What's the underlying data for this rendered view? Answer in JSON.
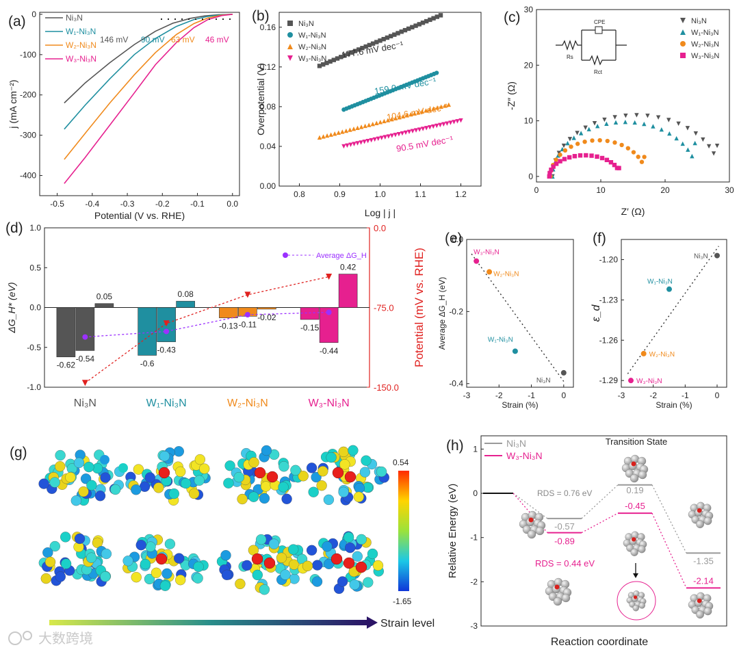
{
  "colors": {
    "ni3n": "#555555",
    "w1": "#1f8fa0",
    "w2": "#f08a1c",
    "w3": "#e6208f",
    "red": "#e0211f",
    "purple": "#9b30ff"
  },
  "chart_data": [
    {
      "panel": "(a)",
      "type": "line",
      "xlabel": "Potential (V vs. RHE)",
      "ylabel": "j (mA cm⁻²)",
      "xlim": [
        -0.55,
        0.02
      ],
      "ylim": [
        -450,
        5
      ],
      "xticks": [
        "-0.5",
        "-0.4",
        "-0.3",
        "-0.2",
        "-0.1",
        "0.0"
      ],
      "yticks": [
        "0",
        "-100",
        "-200",
        "-300",
        "-400"
      ],
      "legend": [
        "Ni₃N",
        "W₁-Ni₃N",
        "W₂-Ni₃N",
        "W₃-Ni₃N"
      ],
      "annotations": [
        "146 mV",
        "90 mV",
        "63 mV",
        "46 mV"
      ],
      "series": [
        {
          "name": "Ni₃N",
          "x": [
            -0.48,
            -0.42,
            -0.35,
            -0.28,
            -0.22,
            -0.17,
            -0.12,
            -0.08,
            -0.04,
            0.0
          ],
          "y": [
            -220,
            -170,
            -120,
            -75,
            -42,
            -22,
            -10,
            -4,
            -1,
            0
          ]
        },
        {
          "name": "W₁-Ni₃N",
          "x": [
            -0.48,
            -0.42,
            -0.35,
            -0.28,
            -0.22,
            -0.16,
            -0.11,
            -0.07,
            -0.03,
            0.0
          ],
          "y": [
            -285,
            -225,
            -160,
            -100,
            -60,
            -30,
            -13,
            -5,
            -1,
            0
          ]
        },
        {
          "name": "W₂-Ni₃N",
          "x": [
            -0.48,
            -0.42,
            -0.35,
            -0.28,
            -0.22,
            -0.16,
            -0.11,
            -0.07,
            -0.03,
            0.0
          ],
          "y": [
            -360,
            -295,
            -220,
            -150,
            -95,
            -50,
            -23,
            -9,
            -2,
            0
          ]
        },
        {
          "name": "W₃-Ni₃N",
          "x": [
            -0.48,
            -0.42,
            -0.35,
            -0.28,
            -0.22,
            -0.16,
            -0.11,
            -0.07,
            -0.03,
            0.0
          ],
          "y": [
            -420,
            -355,
            -275,
            -195,
            -125,
            -70,
            -33,
            -13,
            -3,
            0
          ]
        }
      ]
    },
    {
      "panel": "(b)",
      "type": "scatter",
      "xlabel": "Log | j |",
      "ylabel": "Overpotential (V)",
      "xlim": [
        0.75,
        1.25
      ],
      "ylim": [
        0.0,
        0.175
      ],
      "xticks": [
        "0.8",
        "0.9",
        "1.0",
        "1.1",
        "1.2"
      ],
      "yticks": [
        "0.00",
        "0.04",
        "0.08",
        "0.12",
        "0.16"
      ],
      "legend": [
        "Ni₃N",
        "W₁-Ni₃N",
        "W₂-Ni₃N",
        "W₃-Ni₃N"
      ],
      "annotations": [
        "177.6 mV dec⁻¹",
        "159.0 mV dec⁻¹",
        "104.6 mV dec⁻¹",
        "90.5 mV dec⁻¹"
      ],
      "series": [
        {
          "name": "Ni₃N",
          "x0": 0.85,
          "y0": 0.121,
          "x1": 1.15,
          "y1": 0.172
        },
        {
          "name": "W₁-Ni₃N",
          "x0": 0.91,
          "y0": 0.077,
          "x1": 1.14,
          "y1": 0.114
        },
        {
          "name": "W₂-Ni₃N",
          "x0": 0.85,
          "y0": 0.049,
          "x1": 1.17,
          "y1": 0.082
        },
        {
          "name": "W₃-Ni₃N",
          "x0": 0.91,
          "y0": 0.04,
          "x1": 1.2,
          "y1": 0.066
        }
      ]
    },
    {
      "panel": "(c)",
      "type": "scatter",
      "xlabel": "Z′ (Ω)",
      "ylabel": "-Z″ (Ω)",
      "xlim": [
        0,
        30
      ],
      "ylim": [
        -1,
        30
      ],
      "xticks": [
        "0",
        "10",
        "20",
        "30"
      ],
      "yticks": [
        "0",
        "10",
        "20",
        "30"
      ],
      "legend": [
        "Ni₃N",
        "W₁-Ni₃N",
        "W₂-Ni₃N",
        "W₃-Ni₃N"
      ],
      "circuit_labels": [
        "CPE",
        "Rs",
        "Rct"
      ],
      "series": [
        {
          "name": "Ni₃N",
          "x_start": 2.5,
          "x_end": 28.5,
          "peak": 11,
          "end_y": 5.5
        },
        {
          "name": "W₁-Ni₃N",
          "x_start": 2.5,
          "x_end": 25,
          "peak": 9.8,
          "end_y": 6
        },
        {
          "name": "W₂-Ni₃N",
          "x_start": 2.2,
          "x_end": 17,
          "peak": 6.5,
          "end_y": 3.5
        },
        {
          "name": "W₃-Ni₃N",
          "x_start": 2.0,
          "x_end": 13,
          "peak": 3.8,
          "end_y": 1.5
        }
      ]
    },
    {
      "panel": "(d)",
      "type": "bar",
      "ylabel_left": "ΔG_H* (eV)",
      "ylabel_right": "Potential (mV vs. RHE)",
      "ylim_left": [
        -1.0,
        1.0
      ],
      "ylim_right": [
        -150.0,
        0.0
      ],
      "yticks_left": [
        "1.0",
        "0.5",
        "0.0",
        "-0.5",
        "-1.0"
      ],
      "yticks_right": [
        "0.0",
        "-75.0",
        "-150.0"
      ],
      "categories": [
        "Ni₃N",
        "W₁-Ni₃N",
        "W₂-Ni₃N",
        "W₃-Ni₃N"
      ],
      "bar_values": [
        [
          -0.62,
          -0.54,
          0.05
        ],
        [
          -0.6,
          -0.43,
          0.08
        ],
        [
          -0.13,
          -0.11,
          -0.02
        ],
        [
          -0.15,
          -0.44,
          0.42
        ]
      ],
      "bar_labels": [
        [
          "-0.62",
          "-0.54",
          "0.05"
        ],
        [
          "-0.6",
          "-0.43",
          "0.08"
        ],
        [
          "-0.13",
          "-0.11",
          "-0.02"
        ],
        [
          "-0.15",
          "-0.44",
          "0.42"
        ]
      ],
      "average_dGH": [
        -0.37,
        -0.3,
        -0.09,
        -0.06
      ],
      "potential_mV": [
        -146,
        -90,
        -63,
        -46
      ],
      "legend": [
        "Average ΔG_H"
      ]
    },
    {
      "panel": "(e)",
      "type": "scatter",
      "xlabel": "Strain (%)",
      "ylabel": "Average ΔG_H (eV)",
      "xlim": [
        -3.0,
        0.3
      ],
      "ylim": [
        -0.41,
        0.0
      ],
      "xticks": [
        "-3",
        "-2",
        "-1",
        "0"
      ],
      "yticks": [
        "0.0",
        "-0.2",
        "-0.4"
      ],
      "points": [
        {
          "label": "W₃-Ni₃N",
          "x": -2.7,
          "y": -0.06
        },
        {
          "label": "W₂-Ni₃N",
          "x": -2.3,
          "y": -0.09
        },
        {
          "label": "W₁-Ni₃N",
          "x": -1.5,
          "y": -0.31
        },
        {
          "label": "Ni₃N",
          "x": 0.0,
          "y": -0.37
        }
      ]
    },
    {
      "panel": "(f)",
      "type": "scatter",
      "xlabel": "Strain (%)",
      "ylabel": "ε_d",
      "xlim": [
        -3.0,
        0.3
      ],
      "ylim": [
        -1.295,
        -1.185
      ],
      "xticks": [
        "-3",
        "-2",
        "-1",
        "0"
      ],
      "yticks": [
        "-1.20",
        "-1.23",
        "-1.26",
        "-1.29"
      ],
      "points": [
        {
          "label": "Ni₃N",
          "x": 0.0,
          "y": -1.197
        },
        {
          "label": "W₁-Ni₃N",
          "x": -1.5,
          "y": -1.222
        },
        {
          "label": "W₂-Ni₃N",
          "x": -2.3,
          "y": -1.27
        },
        {
          "label": "W₃-Ni₃N",
          "x": -2.7,
          "y": -1.29
        }
      ]
    },
    {
      "panel": "(h)",
      "type": "line",
      "xlabel": "Reaction coordinate",
      "ylabel": "Relative Energy (eV)",
      "ylim": [
        -3,
        1.3
      ],
      "yticks": [
        "1",
        "0",
        "-1",
        "-2",
        "-3"
      ],
      "legend": [
        "Ni₃N",
        "W₃-Ni₃N"
      ],
      "title_annotation": "Transition State",
      "series": [
        {
          "name": "Ni₃N",
          "levels": [
            0,
            -0.57,
            0.19,
            -1.35
          ],
          "labels": [
            "-0.57",
            "0.19",
            "-1.35"
          ]
        },
        {
          "name": "W₃-Ni₃N",
          "levels": [
            0,
            -0.89,
            -0.45,
            -2.14
          ],
          "labels": [
            "-0.89",
            "-0.45",
            "-2.14"
          ]
        }
      ],
      "rds": [
        "RDS = 0.76 eV",
        "RDS = 0.44 eV"
      ]
    }
  ],
  "panel_g": {
    "letter": "(g)",
    "colorbar_max": "0.54",
    "colorbar_min": "-1.65",
    "strain_label": "Strain level"
  },
  "watermark": "大数跨境"
}
